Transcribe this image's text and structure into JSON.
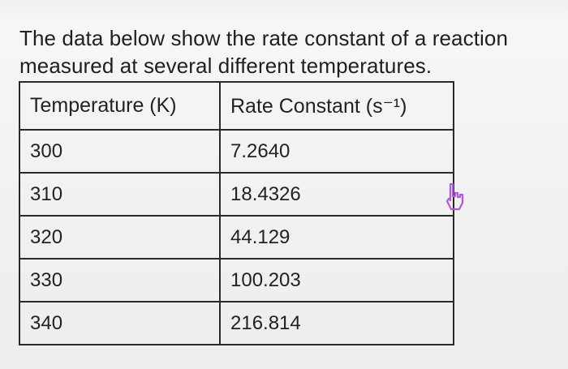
{
  "prompt": {
    "line1": "The data below show the rate constant of a reaction",
    "line2": "measured at several different temperatures."
  },
  "table": {
    "headers": [
      "Temperature (K)",
      "Rate Constant (s⁻¹)"
    ],
    "rows": [
      [
        "300",
        "7.2640"
      ],
      [
        "310",
        "18.4326"
      ],
      [
        "320",
        "44.129"
      ],
      [
        "330",
        "100.203"
      ],
      [
        "340",
        "216.814"
      ]
    ]
  },
  "cursor": {
    "icon": "hand-pointer-icon",
    "color": "#b35bd6"
  }
}
